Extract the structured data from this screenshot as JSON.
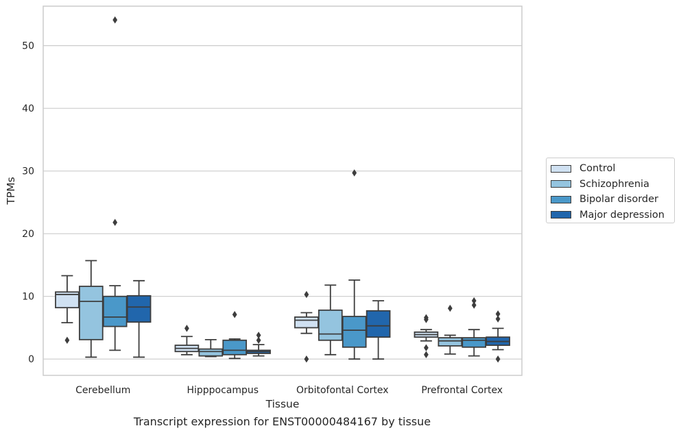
{
  "chart_data": {
    "type": "boxplot",
    "title": "Transcript expression for ENST00000484167 by tissue",
    "xlabel": "Tissue",
    "ylabel": "TPMs",
    "ylim": [
      -2.6,
      56.3
    ],
    "yticks": [
      0,
      10,
      20,
      30,
      40,
      50
    ],
    "grid": "horizontal",
    "legend_position": "right",
    "categories": [
      "Cerebellum",
      "Hipppocampus",
      "Orbitofontal Cortex",
      "Prefrontal Cortex"
    ],
    "series": [
      {
        "name": "Control",
        "color": "#d0e1f2",
        "boxes": [
          {
            "whisker_low": 5.8,
            "q1": 8.2,
            "median": 10.3,
            "q3": 10.7,
            "whisker_high": 13.3,
            "outliers": [
              3.0
            ]
          },
          {
            "whisker_low": 0.7,
            "q1": 1.2,
            "median": 1.7,
            "q3": 2.2,
            "whisker_high": 3.6,
            "outliers": [
              4.9
            ]
          },
          {
            "whisker_low": 4.1,
            "q1": 5.0,
            "median": 6.2,
            "q3": 6.7,
            "whisker_high": 7.4,
            "outliers": [
              10.3,
              0.0
            ]
          },
          {
            "whisker_low": 2.9,
            "q1": 3.5,
            "median": 3.9,
            "q3": 4.3,
            "whisker_high": 4.7,
            "outliers": [
              6.3,
              6.6,
              1.8,
              0.7
            ]
          }
        ]
      },
      {
        "name": "Schizophrenia",
        "color": "#94c4df",
        "boxes": [
          {
            "whisker_low": 0.3,
            "q1": 3.1,
            "median": 9.2,
            "q3": 11.6,
            "whisker_high": 15.7,
            "outliers": []
          },
          {
            "whisker_low": 0.4,
            "q1": 0.5,
            "median": 1.2,
            "q3": 1.6,
            "whisker_high": 3.1,
            "outliers": []
          },
          {
            "whisker_low": 0.7,
            "q1": 3.0,
            "median": 4.0,
            "q3": 7.8,
            "whisker_high": 11.8,
            "outliers": []
          },
          {
            "whisker_low": 0.8,
            "q1": 2.1,
            "median": 2.9,
            "q3": 3.4,
            "whisker_high": 3.8,
            "outliers": [
              8.1
            ]
          }
        ]
      },
      {
        "name": "Bipolar disorder",
        "color": "#4a98c9",
        "boxes": [
          {
            "whisker_low": 1.4,
            "q1": 5.2,
            "median": 6.7,
            "q3": 10.0,
            "whisker_high": 11.7,
            "outliers": [
              21.8,
              54.1
            ]
          },
          {
            "whisker_low": 0.1,
            "q1": 0.7,
            "median": 1.4,
            "q3": 3.0,
            "whisker_high": 3.2,
            "outliers": [
              7.1
            ]
          },
          {
            "whisker_low": 0.0,
            "q1": 1.9,
            "median": 4.6,
            "q3": 6.8,
            "whisker_high": 12.6,
            "outliers": [
              29.7
            ]
          },
          {
            "whisker_low": 0.5,
            "q1": 1.9,
            "median": 3.0,
            "q3": 3.4,
            "whisker_high": 4.7,
            "outliers": [
              8.6,
              9.3
            ]
          }
        ]
      },
      {
        "name": "Major depression",
        "color": "#2166ac",
        "boxes": [
          {
            "whisker_low": 0.3,
            "q1": 5.9,
            "median": 8.3,
            "q3": 10.1,
            "whisker_high": 12.5,
            "outliers": []
          },
          {
            "whisker_low": 0.5,
            "q1": 0.9,
            "median": 1.2,
            "q3": 1.4,
            "whisker_high": 2.3,
            "outliers": [
              3.8,
              3.0
            ]
          },
          {
            "whisker_low": 0.0,
            "q1": 3.5,
            "median": 5.3,
            "q3": 7.7,
            "whisker_high": 9.3,
            "outliers": []
          },
          {
            "whisker_low": 1.5,
            "q1": 2.2,
            "median": 2.8,
            "q3": 3.5,
            "whisker_high": 4.9,
            "outliers": [
              6.4,
              7.2,
              0.0
            ]
          }
        ]
      }
    ]
  }
}
